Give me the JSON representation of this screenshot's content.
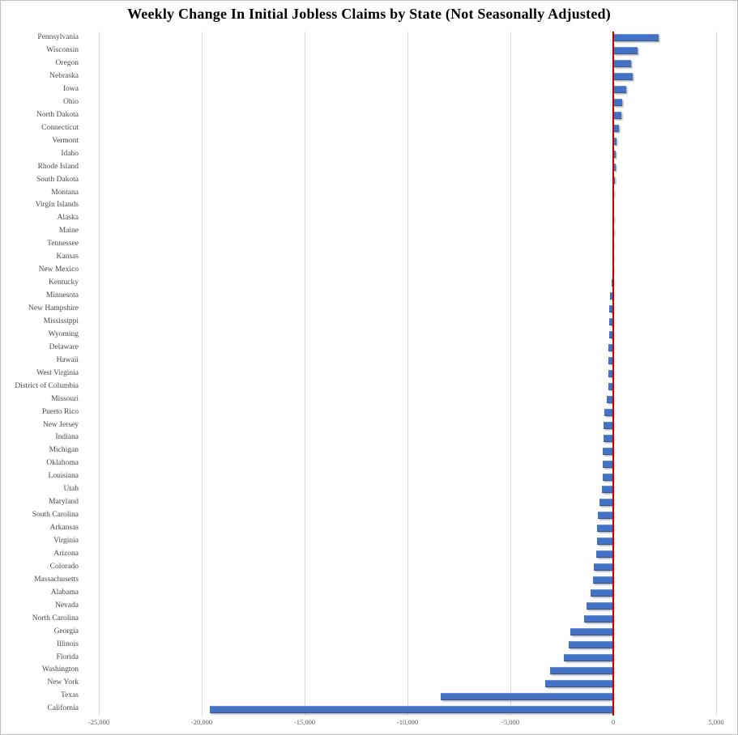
{
  "chart_data": {
    "type": "bar",
    "orientation": "horizontal",
    "title": "Weekly Change In Initial Jobless Claims by State (Not Seasonally Adjusted)",
    "xlabel": "",
    "ylabel": "",
    "xlim": [
      -25000,
      5000
    ],
    "grid": "vertical-only",
    "legend": "none",
    "x_ticks": [
      {
        "value": -25000,
        "label": "-25,000"
      },
      {
        "value": -20000,
        "label": "-20,000"
      },
      {
        "value": -15000,
        "label": "-15,000"
      },
      {
        "value": -10000,
        "label": "-10,000"
      },
      {
        "value": -5000,
        "label": "-5,000"
      },
      {
        "value": 0,
        "label": "0"
      },
      {
        "value": 5000,
        "label": "5,000"
      }
    ],
    "categories": [
      "Pennsylvania",
      "Wisconsin",
      "Oregon",
      "Nebraska",
      "Iowa",
      "Ohio",
      "North Dakota",
      "Connecticut",
      "Vermont",
      "Idaho",
      "Rhode Island",
      "South Dakota",
      "Montana",
      "Virgin Islands",
      "Alaska",
      "Maine",
      "Tennessee",
      "Kansas",
      "New Mexico",
      "Kentucky",
      "Minnesota",
      "New Hampshire",
      "Mississippi",
      "Wyoming",
      "Delaware",
      "Hawaii",
      "West Virginia",
      "District of Columbia",
      "Missouri",
      "Puerto Rico",
      "New Jersey",
      "Indiana",
      "Michigan",
      "Oklahoma",
      "Louisiana",
      "Utah",
      "Maryland",
      "South Carolina",
      "Arkansas",
      "Virginia",
      "Arizona",
      "Colorado",
      "Massachusetts",
      "Alabama",
      "Nevada",
      "North Carolina",
      "Georgia",
      "Illinois",
      "Florida",
      "Washington",
      "New York",
      "Texas",
      "California"
    ],
    "values": [
      2200,
      1200,
      860,
      930,
      620,
      430,
      390,
      260,
      160,
      130,
      110,
      65,
      15,
      0,
      -5,
      -10,
      -20,
      -35,
      -55,
      -85,
      -150,
      -180,
      -200,
      -215,
      -225,
      -235,
      -245,
      -255,
      -330,
      -430,
      -460,
      -480,
      -495,
      -510,
      -530,
      -555,
      -655,
      -760,
      -770,
      -790,
      -820,
      -960,
      -975,
      -1090,
      -1290,
      -1420,
      -2100,
      -2165,
      -2390,
      -3080,
      -3300,
      -8400,
      -19600
    ],
    "colors": {
      "bar": "#4472C4",
      "bar_edge": "#35599F",
      "zero_line": "#C00000",
      "gridline": "#D9D9D9",
      "tick_text": "#595959",
      "label_text": "#4A4A4A",
      "title_text": "#000000",
      "background": "#FFFFFF",
      "border": "#BFBFBF"
    }
  }
}
